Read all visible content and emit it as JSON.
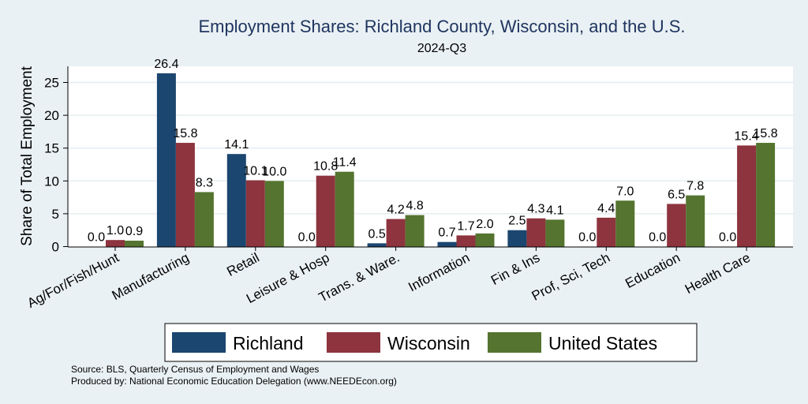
{
  "chart_data": {
    "type": "bar",
    "title": "Employment Shares: Richland County, Wisconsin, and the U.S.",
    "subtitle": "2024-Q3",
    "ylabel": "Share of Total Employment",
    "xlabel": "",
    "ylim": [
      0,
      27.5
    ],
    "yticks": [
      0,
      5,
      10,
      15,
      20,
      25
    ],
    "grid": true,
    "legend_position": "bottom",
    "categories": [
      "Ag/For/Fish/Hunt",
      "Manufacturing",
      "Retail",
      "Leisure & Hosp",
      "Trans. & Ware.",
      "Information",
      "Fin & Ins",
      "Prof, Sci, Tech",
      "Education",
      "Health Care"
    ],
    "series": [
      {
        "name": "Richland",
        "color": "#1b466f",
        "values": [
          0.0,
          26.4,
          14.1,
          0.0,
          0.5,
          0.7,
          2.5,
          0.0,
          0.0,
          0.0
        ],
        "labels": [
          "0.0",
          "26.4",
          "14.1",
          "0.0",
          "0.5",
          "0.7",
          "2.5",
          "0.0",
          "0.0",
          "0.0"
        ]
      },
      {
        "name": "Wisconsin",
        "color": "#8d343e",
        "values": [
          1.0,
          15.8,
          10.1,
          10.8,
          4.2,
          1.7,
          4.3,
          4.4,
          6.5,
          15.4
        ],
        "labels": [
          "1.0",
          "15.8",
          "10.1",
          "10.8",
          "4.2",
          "1.7",
          "4.3",
          "4.4",
          "6.5",
          "15.4"
        ]
      },
      {
        "name": "United States",
        "color": "#55742f",
        "values": [
          0.9,
          8.3,
          10.0,
          11.4,
          4.8,
          2.0,
          4.1,
          7.0,
          7.8,
          15.8
        ],
        "labels": [
          "0.9",
          "8.3",
          "10.0",
          "11.4",
          "4.8",
          "2.0",
          "4.1",
          "7.0",
          "7.8",
          "15.8"
        ]
      }
    ],
    "notes": [
      "Source: BLS, Quarterly Census of Employment and Wages",
      "Produced by: National Economic Education Delegation (www.NEEDEcon.org)"
    ]
  }
}
